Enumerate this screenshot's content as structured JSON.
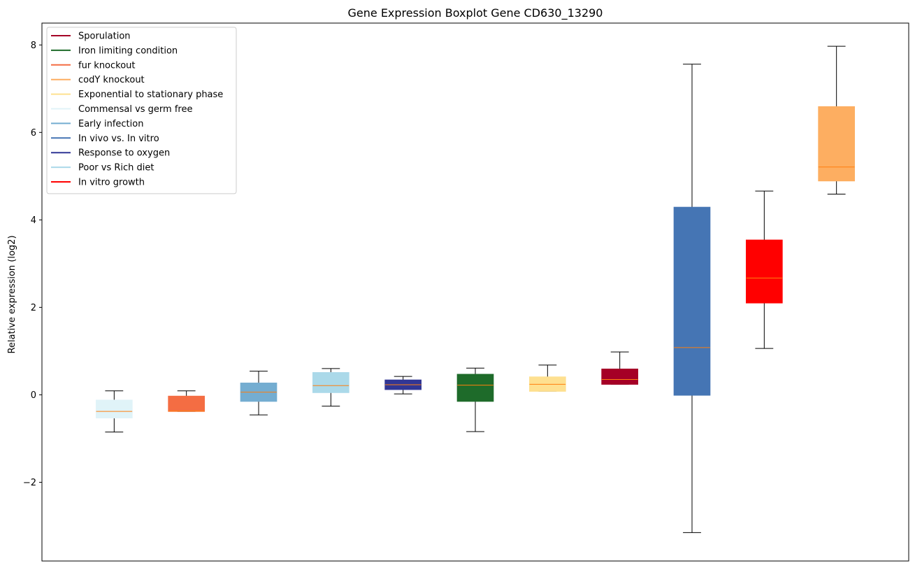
{
  "chart_data": {
    "type": "boxplot",
    "title": "Gene Expression Boxplot Gene CD630_13290",
    "ylabel": "Relative expression (log2)",
    "xlabel": "",
    "ylim": [
      -3.8,
      8.5
    ],
    "yticks": [
      -2,
      0,
      2,
      4,
      6,
      8
    ],
    "ytick_labels": [
      "−2",
      "0",
      "2",
      "4",
      "6",
      "8"
    ],
    "legend_position": "upper-left",
    "legend": [
      {
        "label": "Sporulation",
        "color": "#a50026"
      },
      {
        "label": "Iron limiting condition",
        "color": "#1e6b2a"
      },
      {
        "label": "fur knockout",
        "color": "#f46d43"
      },
      {
        "label": "codY knockout",
        "color": "#fdae61"
      },
      {
        "label": "Exponential to stationary phase",
        "color": "#fee090"
      },
      {
        "label": "Commensal vs germ free",
        "color": "#e0f3f8"
      },
      {
        "label": "Early infection",
        "color": "#74add1"
      },
      {
        "label": "In vivo vs. In vitro",
        "color": "#4575b4"
      },
      {
        "label": "Response to oxygen",
        "color": "#313695"
      },
      {
        "label": "Poor vs Rich diet",
        "color": "#abd9e9"
      },
      {
        "label": "In vitro growth",
        "color": "#ff0000"
      }
    ],
    "boxes": [
      {
        "group": "Commensal vs germ free",
        "color": "#e0f3f8",
        "whislo": -0.85,
        "q1": -0.53,
        "med": -0.38,
        "q3": -0.12,
        "whishi": 0.09
      },
      {
        "group": "fur knockout",
        "color": "#f46d43",
        "whislo": -0.38,
        "q1": -0.38,
        "med": -0.37,
        "q3": -0.03,
        "whishi": 0.09
      },
      {
        "group": "Early infection",
        "color": "#74add1",
        "whislo": -0.46,
        "q1": -0.15,
        "med": 0.06,
        "q3": 0.27,
        "whishi": 0.54
      },
      {
        "group": "Poor vs Rich diet",
        "color": "#abd9e9",
        "whislo": -0.26,
        "q1": 0.05,
        "med": 0.21,
        "q3": 0.51,
        "whishi": 0.6
      },
      {
        "group": "Response to oxygen",
        "color": "#313695",
        "whislo": 0.02,
        "q1": 0.12,
        "med": 0.23,
        "q3": 0.34,
        "whishi": 0.42
      },
      {
        "group": "Iron limiting condition",
        "color": "#1e6b2a",
        "whislo": -0.84,
        "q1": -0.15,
        "med": 0.22,
        "q3": 0.47,
        "whishi": 0.61
      },
      {
        "group": "Exponential to stationary phase",
        "color": "#fee090",
        "whislo": 0.08,
        "q1": 0.08,
        "med": 0.24,
        "q3": 0.41,
        "whishi": 0.68
      },
      {
        "group": "Sporulation",
        "color": "#a50026",
        "whislo": 0.24,
        "q1": 0.24,
        "med": 0.35,
        "q3": 0.59,
        "whishi": 0.98
      },
      {
        "group": "In vivo vs. In vitro",
        "color": "#4575b4",
        "whislo": -3.15,
        "q1": -0.01,
        "med": 1.08,
        "q3": 4.29,
        "whishi": 7.56
      },
      {
        "group": "In vitro growth",
        "color": "#ff0000",
        "whislo": 1.06,
        "q1": 2.1,
        "med": 2.67,
        "q3": 3.54,
        "whishi": 4.66
      },
      {
        "group": "codY knockout",
        "color": "#fdae61",
        "whislo": 4.59,
        "q1": 4.89,
        "med": 5.21,
        "q3": 6.59,
        "whishi": 7.97
      }
    ],
    "median_color": "#ff7f0e"
  }
}
